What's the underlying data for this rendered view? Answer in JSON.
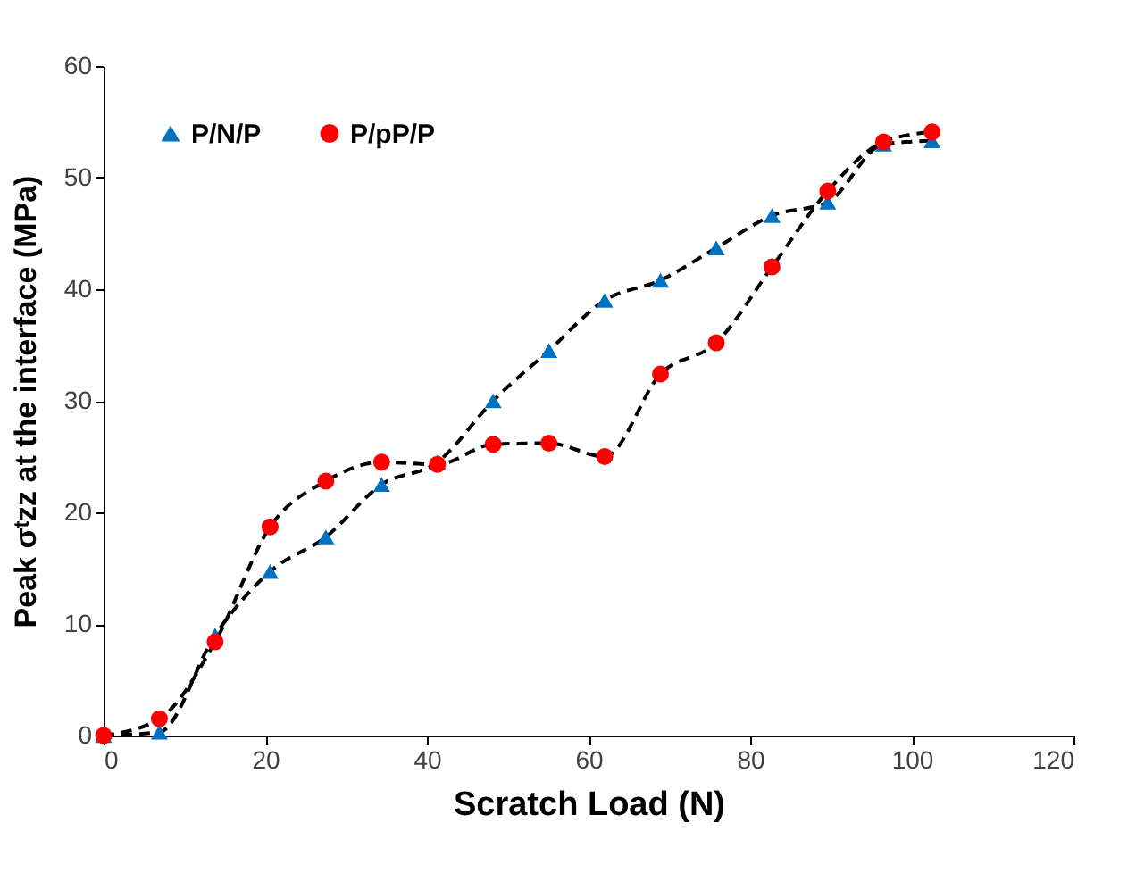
{
  "chart_data": {
    "type": "line",
    "xlabel": "Scratch Load (N)",
    "ylabel": "Peak σᵗzz at the interface (MPa)",
    "x": [
      0,
      6.9,
      13.8,
      20.6,
      27.5,
      34.4,
      41.3,
      48.2,
      55.1,
      62,
      68.9,
      75.8,
      82.7,
      89.6,
      96.5,
      102.5
    ],
    "series": [
      {
        "name": "P/N/P",
        "color": "#0070c0",
        "marker": "triangle",
        "values": [
          0,
          0.3,
          9,
          14.7,
          17.8,
          22.5,
          24.5,
          30,
          34.5,
          39,
          40.8,
          43.7,
          46.6,
          47.8,
          53,
          53.3
        ]
      },
      {
        "name": "P/pP/P",
        "color": "#ff0000",
        "marker": "circle",
        "values": [
          0,
          1.5,
          8.4,
          18.7,
          22.8,
          24.5,
          24.3,
          26.1,
          26.2,
          25,
          32.4,
          35.2,
          42,
          48.8,
          53.2,
          54.1
        ]
      }
    ],
    "xlim": [
      0,
      120
    ],
    "xticks": [
      0,
      20,
      40,
      60,
      80,
      100,
      120
    ],
    "ylim": [
      0,
      60
    ],
    "yticks": [
      0,
      10,
      20,
      30,
      40,
      50,
      60
    ],
    "grid": false,
    "legend": "top left",
    "line_style": "dashed"
  }
}
